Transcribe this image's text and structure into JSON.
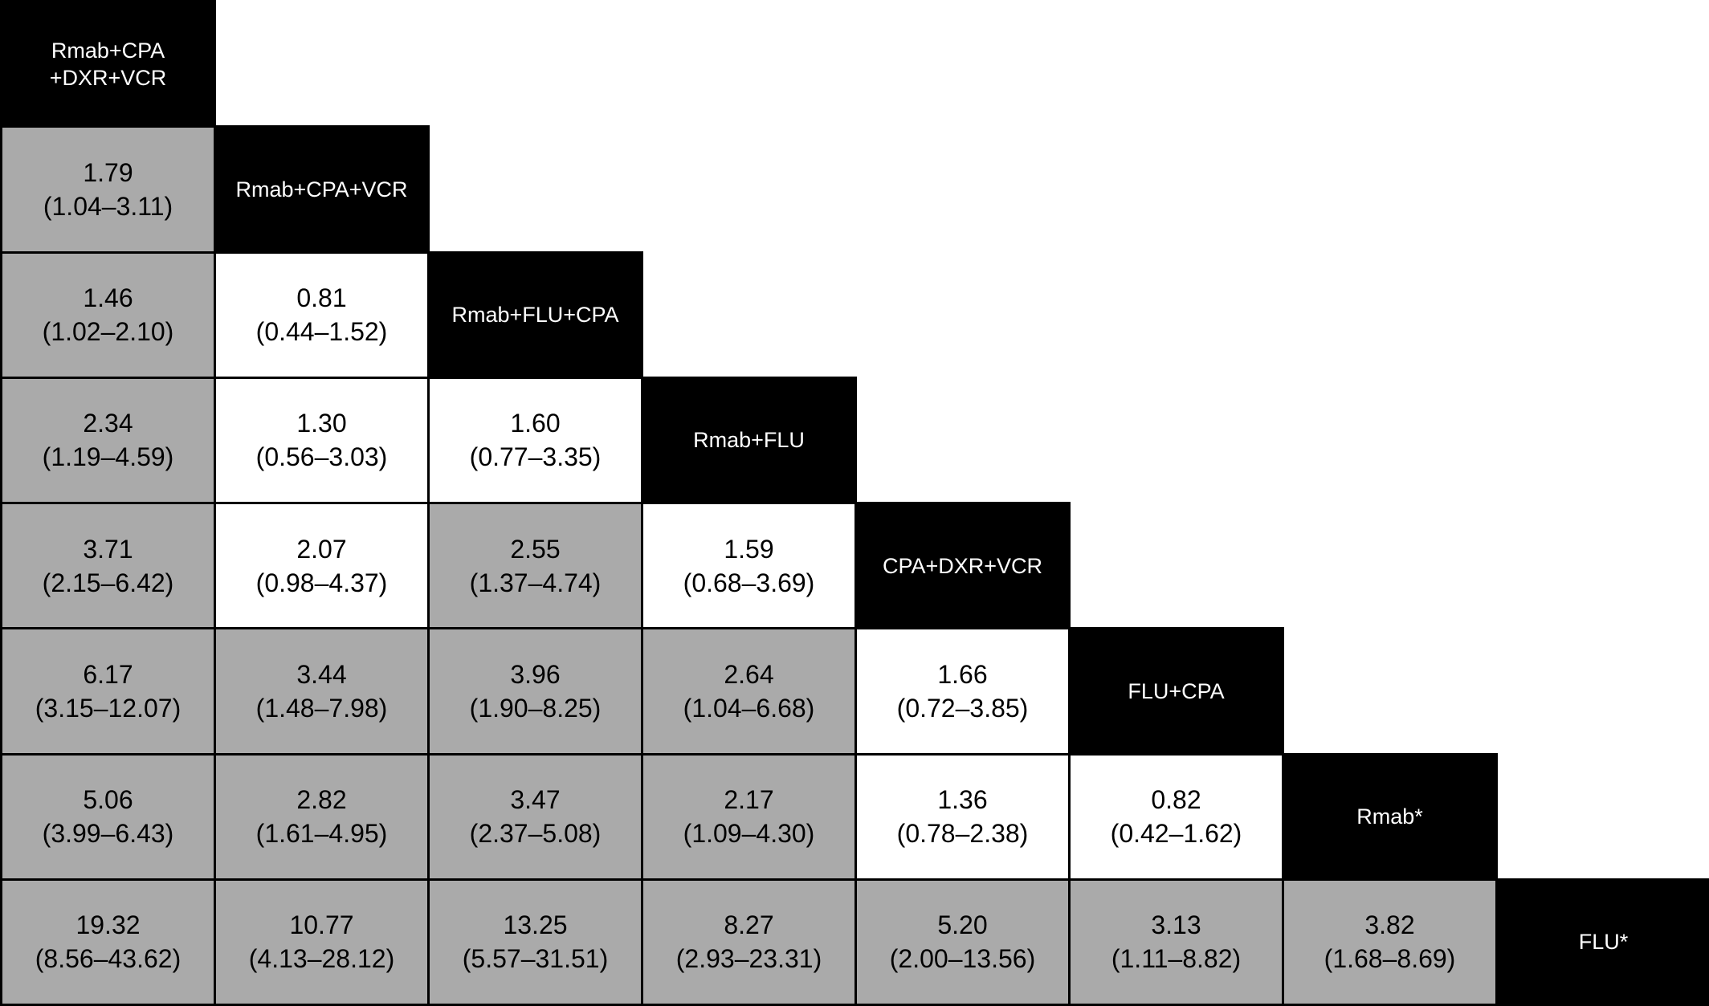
{
  "chart_data": {
    "type": "table",
    "title": "",
    "treatments": [
      [
        "Rmab+CPA",
        "+DXR+VCR"
      ],
      [
        "Rmab+CPA+VCR"
      ],
      [
        "Rmab+FLU+CPA"
      ],
      [
        "Rmab+FLU"
      ],
      [
        "CPA+DXR+VCR"
      ],
      [
        "FLU+CPA"
      ],
      [
        "Rmab*"
      ],
      [
        "FLU*"
      ]
    ],
    "comparisons": [
      [
        {
          "v": "1.79",
          "ci": "(1.04–3.11)",
          "sig": true
        }
      ],
      [
        {
          "v": "1.46",
          "ci": "(1.02–2.10)",
          "sig": true
        },
        {
          "v": "0.81",
          "ci": "(0.44–1.52)",
          "sig": false
        }
      ],
      [
        {
          "v": "2.34",
          "ci": "(1.19–4.59)",
          "sig": true
        },
        {
          "v": "1.30",
          "ci": "(0.56–3.03)",
          "sig": false
        },
        {
          "v": "1.60",
          "ci": "(0.77–3.35)",
          "sig": false
        }
      ],
      [
        {
          "v": "3.71",
          "ci": "(2.15–6.42)",
          "sig": true
        },
        {
          "v": "2.07",
          "ci": "(0.98–4.37)",
          "sig": false
        },
        {
          "v": "2.55",
          "ci": "(1.37–4.74)",
          "sig": true
        },
        {
          "v": "1.59",
          "ci": "(0.68–3.69)",
          "sig": false
        }
      ],
      [
        {
          "v": "6.17",
          "ci": "(3.15–12.07)",
          "sig": true
        },
        {
          "v": "3.44",
          "ci": "(1.48–7.98)",
          "sig": true
        },
        {
          "v": "3.96",
          "ci": "(1.90–8.25)",
          "sig": true
        },
        {
          "v": "2.64",
          "ci": "(1.04–6.68)",
          "sig": true
        },
        {
          "v": "1.66",
          "ci": "(0.72–3.85)",
          "sig": false
        }
      ],
      [
        {
          "v": "5.06",
          "ci": "(3.99–6.43)",
          "sig": true
        },
        {
          "v": "2.82",
          "ci": "(1.61–4.95)",
          "sig": true
        },
        {
          "v": "3.47",
          "ci": "(2.37–5.08)",
          "sig": true
        },
        {
          "v": "2.17",
          "ci": "(1.09–4.30)",
          "sig": true
        },
        {
          "v": "1.36",
          "ci": "(0.78–2.38)",
          "sig": false
        },
        {
          "v": "0.82",
          "ci": "(0.42–1.62)",
          "sig": false
        }
      ],
      [
        {
          "v": "19.32",
          "ci": "(8.56–43.62)",
          "sig": true
        },
        {
          "v": "10.77",
          "ci": "(4.13–28.12)",
          "sig": true
        },
        {
          "v": "13.25",
          "ci": "(5.57–31.51)",
          "sig": true
        },
        {
          "v": "8.27",
          "ci": "(2.93–23.31)",
          "sig": true
        },
        {
          "v": "5.20",
          "ci": "(2.00–13.56)",
          "sig": true
        },
        {
          "v": "3.13",
          "ci": "(1.11–8.82)",
          "sig": true
        },
        {
          "v": "3.82",
          "ci": "(1.68–8.69)",
          "sig": true
        }
      ]
    ],
    "colors": {
      "diagonal": "#000000",
      "diagonal_text": "#ffffff",
      "significant": "#aaaaaa",
      "not_significant": "#ffffff",
      "border": "#000000",
      "value_text": "#000000"
    }
  }
}
